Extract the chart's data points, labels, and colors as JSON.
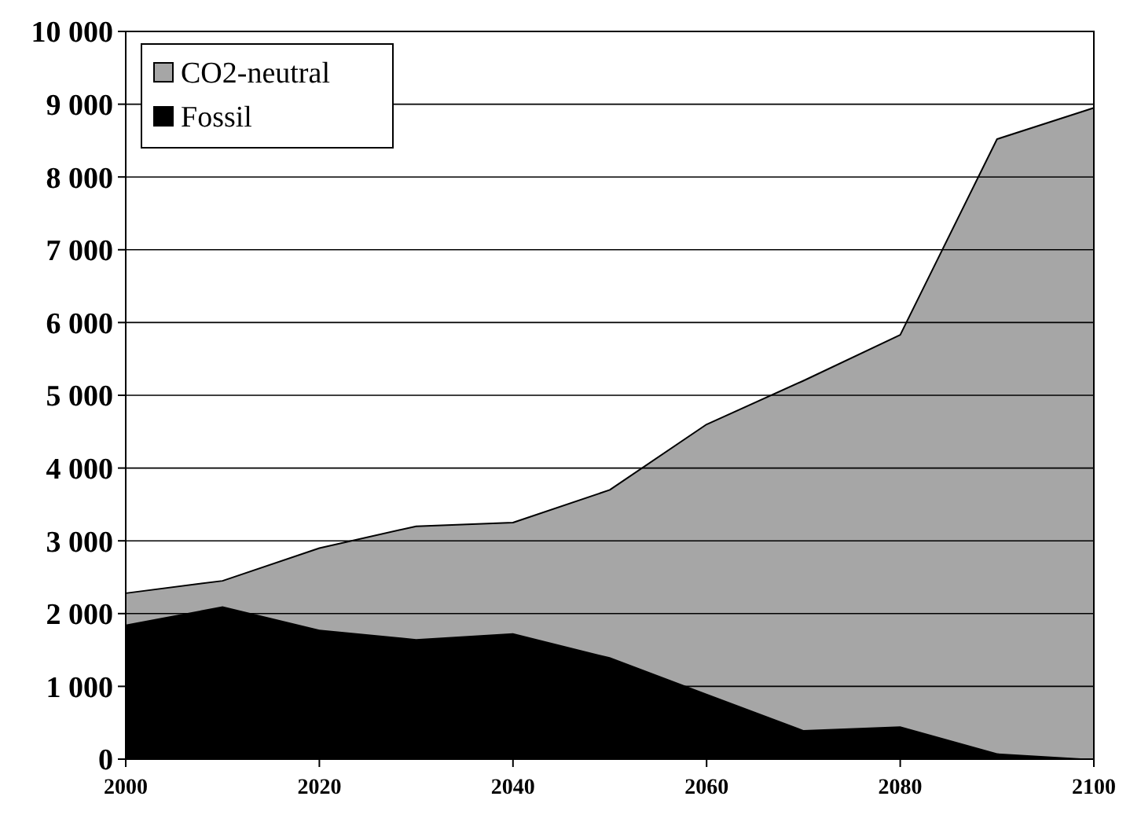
{
  "chart_data": {
    "type": "area",
    "stacked": true,
    "x": [
      2000,
      2010,
      2020,
      2030,
      2040,
      2050,
      2060,
      2070,
      2080,
      2090,
      2100
    ],
    "series": [
      {
        "name": "Fossil",
        "color": "#000000",
        "values": [
          1850,
          2100,
          1780,
          1650,
          1730,
          1400,
          900,
          400,
          450,
          80,
          0
        ]
      },
      {
        "name": "CO2-neutral",
        "color": "#a6a6a6",
        "values": [
          430,
          350,
          1120,
          1550,
          1520,
          2300,
          3700,
          4800,
          5380,
          8440,
          8950
        ]
      }
    ],
    "xlim": [
      2000,
      2100
    ],
    "xticks": [
      2000,
      2020,
      2040,
      2060,
      2080,
      2100
    ],
    "ylim": [
      0,
      10000
    ],
    "yticks": [
      {
        "value": 0,
        "label": "0"
      },
      {
        "value": 1000,
        "label": "1 000"
      },
      {
        "value": 2000,
        "label": "2 000"
      },
      {
        "value": 3000,
        "label": "3 000"
      },
      {
        "value": 4000,
        "label": "4 000"
      },
      {
        "value": 5000,
        "label": "5 000"
      },
      {
        "value": 6000,
        "label": "6 000"
      },
      {
        "value": 7000,
        "label": "7 000"
      },
      {
        "value": 8000,
        "label": "8 000"
      },
      {
        "value": 9000,
        "label": "9 000"
      },
      {
        "value": 10000,
        "label": "10 000"
      }
    ],
    "grid": "y",
    "legend": "top left"
  }
}
